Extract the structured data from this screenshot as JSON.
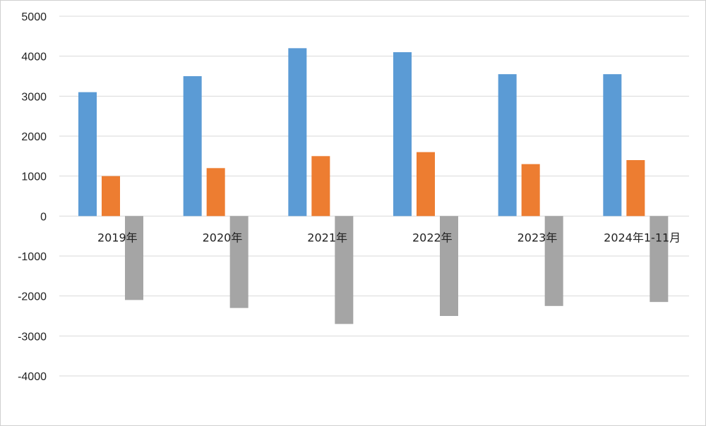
{
  "chart_data": {
    "type": "bar",
    "title": "",
    "xlabel": "",
    "ylabel": "",
    "categories": [
      "2019年",
      "2020年",
      "2021年",
      "2022年",
      "2023年",
      "2024年1-11月"
    ],
    "series": [
      {
        "color": "#5B9BD5",
        "values": [
          3100,
          3500,
          4200,
          4100,
          3550,
          3550
        ]
      },
      {
        "color": "#ED7D31",
        "values": [
          1000,
          1200,
          1500,
          1600,
          1300,
          1400
        ]
      },
      {
        "color": "#A5A5A5",
        "values": [
          -2100,
          -2300,
          -2700,
          -2500,
          -2250,
          -2150
        ]
      }
    ],
    "ylim": [
      -4000,
      5000
    ],
    "yticks": [
      5000,
      4000,
      3000,
      2000,
      1000,
      0,
      -1000,
      -2000,
      -3000,
      -4000
    ],
    "grid": true,
    "legend": "none"
  }
}
